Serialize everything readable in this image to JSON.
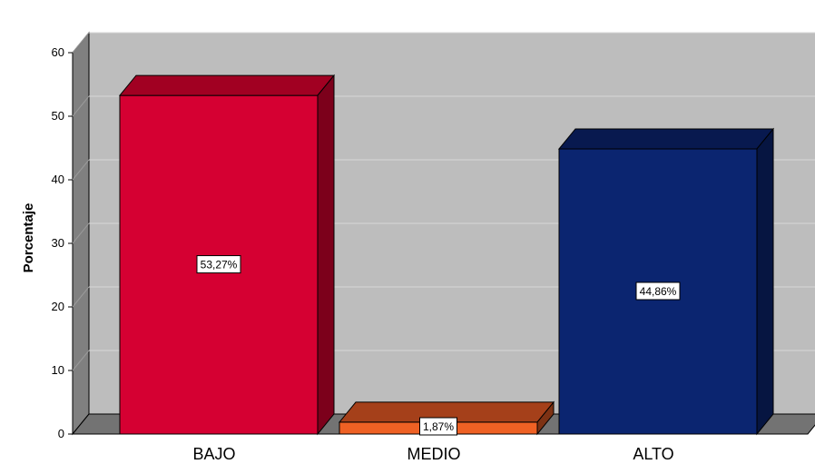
{
  "chart_data": {
    "type": "bar",
    "ylabel": "Porcentaje",
    "ylim": [
      0,
      60
    ],
    "yticks": [
      0,
      10,
      20,
      30,
      40,
      50,
      60
    ],
    "grid": true,
    "categories": [
      "BAJO",
      "MEDIO",
      "ALTO"
    ],
    "values": [
      53.27,
      1.87,
      44.86
    ],
    "data_labels": [
      "53,27%",
      "1,87%",
      "44,86%"
    ],
    "colors": {
      "front": [
        "#d50032",
        "#ef6124",
        "#0b2570"
      ],
      "top": [
        "#a10022",
        "#a5401a",
        "#08194f"
      ],
      "side": [
        "#7c001b",
        "#7d3214",
        "#061541"
      ],
      "wall": "#bdbdbd",
      "floor": "#737373",
      "left_wall": "#808080"
    }
  }
}
